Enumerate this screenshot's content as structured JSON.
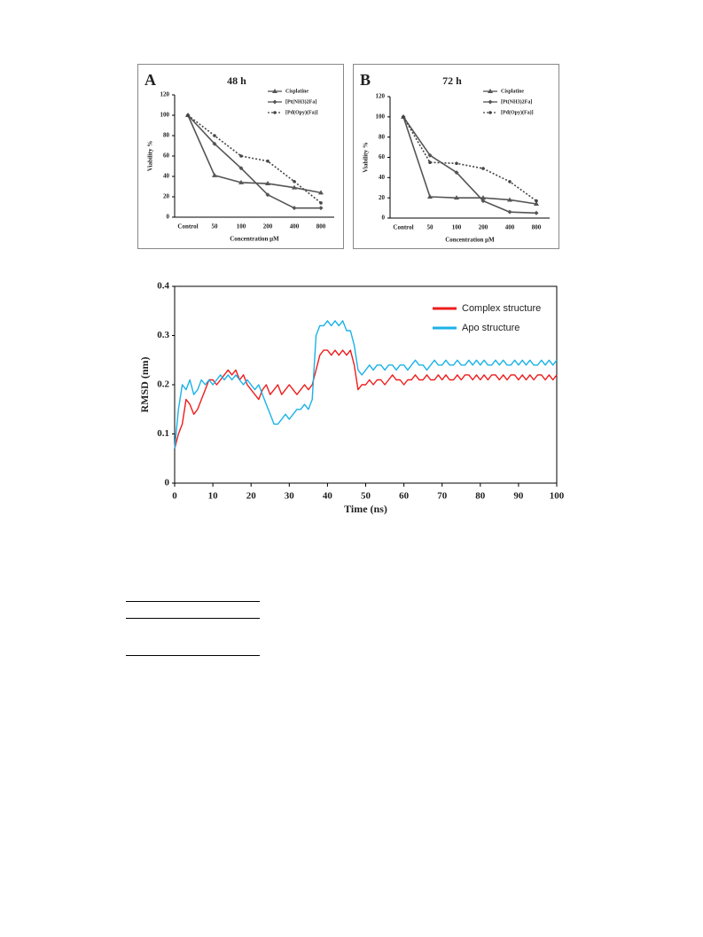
{
  "chart_data": [
    {
      "type": "line",
      "panel_label": "A",
      "title": "48 h",
      "ylabel": "Viability %",
      "xlabel": "Concentration  μM",
      "categories": [
        "Control",
        "50",
        "100",
        "200",
        "400",
        "800"
      ],
      "ylim": [
        0,
        120
      ],
      "yticks": [
        0,
        20,
        40,
        60,
        80,
        100,
        120
      ],
      "series": [
        {
          "name": "Cisplatine",
          "color": "#555555",
          "marker": "triangle",
          "line_style": "solid",
          "values": [
            100,
            41,
            34,
            33,
            29,
            24
          ]
        },
        {
          "name": "[Pt(NH3)2Fa]",
          "color": "#555555",
          "marker": "diamond",
          "line_style": "solid",
          "values": [
            100,
            72,
            48,
            22,
            9,
            9
          ]
        },
        {
          "name": "[Pd(Opy)(Fa)]",
          "color": "#444444",
          "marker": "circle",
          "line_style": "dotted",
          "values": [
            100,
            80,
            60,
            55,
            35,
            14
          ]
        }
      ]
    },
    {
      "type": "line",
      "panel_label": "B",
      "title": "72 h",
      "ylabel": "Viability %",
      "xlabel": "Concentration  μM",
      "categories": [
        "Control",
        "50",
        "100",
        "200",
        "400",
        "800"
      ],
      "ylim": [
        0,
        120
      ],
      "yticks": [
        0,
        20,
        40,
        60,
        80,
        100,
        120
      ],
      "series": [
        {
          "name": "Cisplatine",
          "color": "#555555",
          "marker": "triangle",
          "line_style": "solid",
          "values": [
            100,
            21,
            20,
            20,
            18,
            14
          ]
        },
        {
          "name": "[Pt(NH3)2Fa]",
          "color": "#555555",
          "marker": "diamond",
          "line_style": "solid",
          "values": [
            100,
            62,
            45,
            17,
            6,
            5
          ]
        },
        {
          "name": "[Pd(Opy)(Fa)]",
          "color": "#444444",
          "marker": "circle",
          "line_style": "dotted",
          "values": [
            100,
            55,
            54,
            49,
            36,
            17
          ]
        }
      ]
    },
    {
      "type": "line",
      "ylabel": "RMSD (nm)",
      "xlabel": "Time (ns)",
      "x": [
        0,
        1,
        2,
        3,
        4,
        5,
        6,
        7,
        8,
        9,
        10,
        11,
        12,
        13,
        14,
        15,
        16,
        17,
        18,
        19,
        20,
        21,
        22,
        23,
        24,
        25,
        26,
        27,
        28,
        29,
        30,
        31,
        32,
        33,
        34,
        35,
        36,
        37,
        38,
        39,
        40,
        41,
        42,
        43,
        44,
        45,
        46,
        47,
        48,
        49,
        50,
        51,
        52,
        53,
        54,
        55,
        56,
        57,
        58,
        59,
        60,
        61,
        62,
        63,
        64,
        65,
        66,
        67,
        68,
        69,
        70,
        71,
        72,
        73,
        74,
        75,
        76,
        77,
        78,
        79,
        80,
        81,
        82,
        83,
        84,
        85,
        86,
        87,
        88,
        89,
        90,
        91,
        92,
        93,
        94,
        95,
        96,
        97,
        98,
        99,
        100
      ],
      "xlim": [
        0,
        100
      ],
      "xticks": [
        0,
        10,
        20,
        30,
        40,
        50,
        60,
        70,
        80,
        90,
        100
      ],
      "ylim": [
        0,
        0.4
      ],
      "yticks": [
        0,
        0.1,
        0.2,
        0.3,
        0.4
      ],
      "series": [
        {
          "name": "Complex structure",
          "color": "#ee1c1c",
          "line_style": "solid",
          "values": [
            0.07,
            0.1,
            0.12,
            0.17,
            0.16,
            0.14,
            0.15,
            0.17,
            0.19,
            0.21,
            0.21,
            0.2,
            0.21,
            0.22,
            0.23,
            0.22,
            0.23,
            0.21,
            0.22,
            0.2,
            0.19,
            0.18,
            0.17,
            0.19,
            0.2,
            0.18,
            0.19,
            0.2,
            0.18,
            0.19,
            0.2,
            0.19,
            0.18,
            0.19,
            0.2,
            0.19,
            0.2,
            0.23,
            0.26,
            0.27,
            0.27,
            0.26,
            0.27,
            0.26,
            0.27,
            0.26,
            0.27,
            0.24,
            0.19,
            0.2,
            0.2,
            0.21,
            0.2,
            0.21,
            0.21,
            0.2,
            0.21,
            0.22,
            0.21,
            0.21,
            0.2,
            0.21,
            0.21,
            0.22,
            0.21,
            0.21,
            0.22,
            0.21,
            0.21,
            0.22,
            0.21,
            0.22,
            0.21,
            0.21,
            0.22,
            0.21,
            0.22,
            0.22,
            0.21,
            0.22,
            0.21,
            0.22,
            0.21,
            0.22,
            0.22,
            0.21,
            0.22,
            0.21,
            0.22,
            0.22,
            0.21,
            0.22,
            0.21,
            0.22,
            0.21,
            0.22,
            0.22,
            0.21,
            0.22,
            0.21,
            0.22
          ]
        },
        {
          "name": "Apo structure",
          "color": "#1ab2e8",
          "line_style": "solid",
          "values": [
            0.07,
            0.15,
            0.2,
            0.19,
            0.21,
            0.18,
            0.19,
            0.21,
            0.2,
            0.21,
            0.2,
            0.21,
            0.22,
            0.21,
            0.22,
            0.21,
            0.22,
            0.21,
            0.2,
            0.21,
            0.2,
            0.19,
            0.2,
            0.18,
            0.16,
            0.14,
            0.12,
            0.12,
            0.13,
            0.14,
            0.13,
            0.14,
            0.15,
            0.15,
            0.16,
            0.15,
            0.17,
            0.3,
            0.32,
            0.32,
            0.33,
            0.32,
            0.33,
            0.32,
            0.33,
            0.31,
            0.31,
            0.28,
            0.23,
            0.22,
            0.23,
            0.24,
            0.23,
            0.24,
            0.24,
            0.23,
            0.24,
            0.24,
            0.23,
            0.24,
            0.24,
            0.23,
            0.24,
            0.25,
            0.24,
            0.24,
            0.23,
            0.24,
            0.25,
            0.24,
            0.24,
            0.25,
            0.24,
            0.24,
            0.25,
            0.24,
            0.24,
            0.25,
            0.24,
            0.25,
            0.24,
            0.25,
            0.24,
            0.24,
            0.25,
            0.24,
            0.25,
            0.24,
            0.24,
            0.25,
            0.24,
            0.25,
            0.24,
            0.25,
            0.24,
            0.24,
            0.25,
            0.24,
            0.25,
            0.24,
            0.25
          ]
        }
      ]
    }
  ]
}
